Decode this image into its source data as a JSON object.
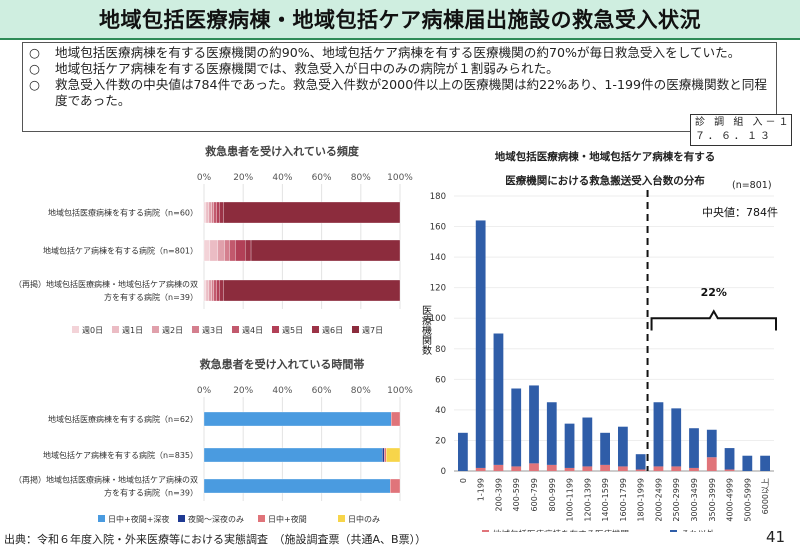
{
  "title": "地域包括医療病棟・地域包括ケア病棟届出施設の救急受入状況",
  "summary": {
    "bullet": "○",
    "items": [
      "地域包括医療病棟を有する医療機関の約90%、地域包括ケア病棟を有する医療機関の約70%が毎日救急受入をしていた。",
      "地域包括ケア病棟を有する医療機関では、救急受入が日中のみの病院が１割弱みられた。",
      "救急受入件数の中央値は784件であった。救急受入件数が2000件以上の医療機関は約22%あり、1-199件の医療機関数と同程度であった。"
    ]
  },
  "stamp": {
    "line1": "診 調 組  入－１",
    "line2": "７．６．１３"
  },
  "footer": "出典：令和６年度入院・外来医療等における実態調査　（施設調査票（共通A、B票））",
  "page_number": "41",
  "chart_data": [
    {
      "type": "bar",
      "orientation": "horizontal",
      "stacked": true,
      "title": "救急患者を受け入れている頻度",
      "xlim": [
        0,
        100
      ],
      "tick_labels": [
        "0%",
        "20%",
        "40%",
        "60%",
        "80%",
        "100%"
      ],
      "categories": [
        [
          "地域包括医療病棟を有する病院（n=60）"
        ],
        [
          "地域包括ケア病棟を有する病院（n=801）"
        ],
        [
          "（再掲）地域包括医療病棟・地域包括ケア病棟の双",
          "方を有する病院（n=39）"
        ]
      ],
      "series": [
        {
          "name": "週0日",
          "color": "#f3d3d8",
          "values": [
            1.0,
            3.0,
            1.0
          ]
        },
        {
          "name": "週1日",
          "color": "#ebbcc4",
          "values": [
            1.5,
            4.0,
            1.5
          ]
        },
        {
          "name": "週2日",
          "color": "#e0a0ab",
          "values": [
            1.5,
            3.5,
            1.5
          ]
        },
        {
          "name": "週3日",
          "color": "#d47f8e",
          "values": [
            1.0,
            2.5,
            1.0
          ]
        },
        {
          "name": "週4日",
          "color": "#c2596d",
          "values": [
            1.5,
            3.0,
            1.5
          ]
        },
        {
          "name": "週5日",
          "color": "#b24057",
          "values": [
            1.5,
            5.0,
            1.5
          ]
        },
        {
          "name": "週6日",
          "color": "#9c3347",
          "values": [
            2.0,
            3.0,
            2.0
          ]
        },
        {
          "name": "週7日",
          "color": "#8c2c3d",
          "values": [
            90.0,
            76.0,
            90.0
          ]
        }
      ]
    },
    {
      "type": "bar",
      "orientation": "horizontal",
      "stacked": true,
      "title": "救急患者を受け入れている時間帯",
      "xlim": [
        0,
        100
      ],
      "tick_labels": [
        "0%",
        "20%",
        "40%",
        "60%",
        "80%",
        "100%"
      ],
      "categories": [
        [
          "地域包括医療病棟を有する病院（n=62）"
        ],
        [
          "地域包括ケア病棟を有する病院（n=835）"
        ],
        [
          "（再掲）地域包括医療病棟・地域包括ケア病棟の双",
          "方を有する病院（n=39）"
        ]
      ],
      "series": [
        {
          "name": "日中+夜間+深夜",
          "color": "#4a9be0",
          "values": [
            95.5,
            91.0,
            95.0
          ]
        },
        {
          "name": "夜間～深夜のみ",
          "color": "#1f3a93",
          "values": [
            0.0,
            1.0,
            0.0
          ]
        },
        {
          "name": "日中+夜間",
          "color": "#e0747a",
          "values": [
            4.5,
            1.0,
            5.0
          ]
        },
        {
          "name": "日中のみ",
          "color": "#f7d54a",
          "values": [
            0.0,
            7.0,
            0.0
          ]
        }
      ]
    },
    {
      "type": "bar",
      "stacked": true,
      "title_lines": [
        "地域包括医療病棟・地域包括ケア病棟を有する",
        "医療機関における救急搬送受入台数の分布"
      ],
      "n_label": "(n=801)",
      "median_label": "中央値：784件",
      "ylabel": "医療機関数",
      "ylim": [
        0,
        180
      ],
      "yticks": [
        0,
        20,
        40,
        60,
        80,
        100,
        120,
        140,
        160,
        180
      ],
      "categories": [
        "0",
        "1-199",
        "200-399",
        "400-599",
        "600-799",
        "800-999",
        "1000-1199",
        "1200-1399",
        "1400-1599",
        "1600-1799",
        "1800-1999",
        "2000-2499",
        "2500-2999",
        "3000-3499",
        "3500-3999",
        "4000-4999",
        "5000-5999",
        "6000以上"
      ],
      "series": [
        {
          "name": "地域包括医療病棟を有する医療機関",
          "color": "#e0747a",
          "values": [
            0,
            2,
            4,
            3,
            5,
            4,
            2,
            3,
            4,
            3,
            1,
            3,
            3,
            2,
            9,
            1,
            0,
            0
          ]
        },
        {
          "name": "それ以外",
          "color": "#2f5da8",
          "values": [
            25,
            162,
            86,
            51,
            51,
            41,
            29,
            32,
            21,
            26,
            10,
            42,
            38,
            26,
            18,
            14,
            10,
            10
          ]
        }
      ],
      "annotation": {
        "label": "22%",
        "from": "2000-2499",
        "to": "6000以上"
      }
    }
  ]
}
